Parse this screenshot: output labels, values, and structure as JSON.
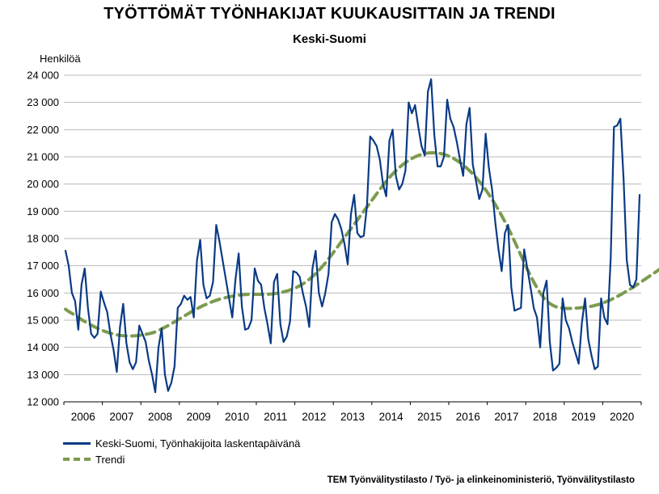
{
  "chart_data": {
    "type": "line",
    "title": "TYÖTTÖMÄT TYÖNHAKIJAT KUUKAUSITTAIN JA TRENDI",
    "subtitle": "Keski-Suomi",
    "ylabel": "Henkilöä",
    "ylim": [
      12000,
      24000
    ],
    "y_ticks": [
      12000,
      13000,
      14000,
      15000,
      16000,
      17000,
      18000,
      19000,
      20000,
      21000,
      22000,
      23000,
      24000
    ],
    "y_tick_labels": [
      "12 000",
      "13 000",
      "14 000",
      "15 000",
      "16 000",
      "17 000",
      "18 000",
      "19 000",
      "20 000",
      "21 000",
      "22 000",
      "23 000",
      "24 000"
    ],
    "x_categories": [
      "2006",
      "2007",
      "2008",
      "2009",
      "2010",
      "2011",
      "2012",
      "2013",
      "2014",
      "2015",
      "2016",
      "2017",
      "2018",
      "2019",
      "2020"
    ],
    "grid": true,
    "legend_position": "bottom-left",
    "series": [
      {
        "name": "Keski-Suomi, Työnhakijoita laskentapäivänä",
        "color": "#0a3a86",
        "style": "solid",
        "start": "2006-01",
        "values": [
          17550,
          17000,
          16000,
          15700,
          14650,
          16300,
          16900,
          15450,
          14500,
          14350,
          14500,
          16050,
          15650,
          15300,
          14500,
          13900,
          13100,
          14750,
          15600,
          14150,
          13450,
          13200,
          13450,
          14800,
          14500,
          14200,
          13500,
          13000,
          12350,
          14000,
          14700,
          13000,
          12400,
          12700,
          13300,
          15450,
          15600,
          15900,
          15750,
          15850,
          15100,
          17200,
          17950,
          16300,
          15800,
          15900,
          16400,
          18500,
          17900,
          17200,
          16500,
          15800,
          15100,
          16500,
          17450,
          15500,
          14650,
          14700,
          15000,
          16900,
          16450,
          16300,
          15450,
          14850,
          14150,
          16400,
          16700,
          14850,
          14200,
          14400,
          14950,
          16800,
          16750,
          16600,
          16000,
          15500,
          14750,
          16900,
          17550,
          16000,
          15500,
          16000,
          16700,
          18600,
          18900,
          18700,
          18350,
          17800,
          17050,
          18900,
          19600,
          18200,
          18050,
          18100,
          19200,
          21750,
          21600,
          21400,
          20900,
          20000,
          19550,
          21600,
          22000,
          20300,
          19800,
          20000,
          20500,
          23000,
          22600,
          22900,
          22100,
          21400,
          21050,
          23400,
          23850,
          21800,
          20650,
          20650,
          21000,
          23100,
          22400,
          22100,
          21550,
          20900,
          20300,
          22200,
          22800,
          20700,
          20100,
          19450,
          19800,
          21850,
          20600,
          19800,
          18600,
          17600,
          16800,
          18200,
          18500,
          16200,
          15350,
          15400,
          15450,
          17600,
          16900,
          16200,
          15450,
          15100,
          14000,
          16000,
          16450,
          14200,
          13150,
          13250,
          13400,
          15800,
          15000,
          14700,
          14200,
          13800,
          13400,
          14900,
          15800,
          14300,
          13700,
          13200,
          13300,
          15800,
          15100,
          14850,
          17300,
          22100,
          22150,
          22400,
          20200,
          17200,
          16300,
          16200,
          16500,
          19600
        ]
      },
      {
        "name": "Trendi",
        "color": "#7d9b4e",
        "style": "dashed",
        "start": "2006-01",
        "values": [
          15400,
          15320,
          15250,
          15180,
          15100,
          15020,
          14950,
          14880,
          14820,
          14760,
          14700,
          14650,
          14600,
          14560,
          14520,
          14490,
          14460,
          14440,
          14430,
          14420,
          14420,
          14420,
          14430,
          14440,
          14460,
          14480,
          14500,
          14530,
          14570,
          14620,
          14680,
          14740,
          14800,
          14870,
          14940,
          15010,
          15080,
          15150,
          15220,
          15290,
          15360,
          15420,
          15480,
          15540,
          15590,
          15640,
          15690,
          15730,
          15770,
          15800,
          15830,
          15860,
          15880,
          15900,
          15920,
          15930,
          15940,
          15950,
          15950,
          15950,
          15950,
          15950,
          15950,
          15950,
          15960,
          15970,
          15990,
          16010,
          16040,
          16070,
          16110,
          16150,
          16200,
          16260,
          16330,
          16410,
          16500,
          16600,
          16710,
          16830,
          16960,
          17100,
          17250,
          17400,
          17560,
          17720,
          17880,
          18040,
          18200,
          18360,
          18520,
          18680,
          18840,
          19000,
          19160,
          19320,
          19480,
          19640,
          19800,
          19950,
          20100,
          20240,
          20370,
          20490,
          20600,
          20700,
          20790,
          20870,
          20940,
          21000,
          21050,
          21090,
          21120,
          21140,
          21150,
          21150,
          21140,
          21120,
          21090,
          21050,
          21000,
          20940,
          20870,
          20790,
          20700,
          20600,
          20490,
          20370,
          20240,
          20100,
          19950,
          19790,
          19620,
          19440,
          19250,
          19050,
          18840,
          18620,
          18390,
          18150,
          17900,
          17640,
          17380,
          17120,
          16870,
          16630,
          16400,
          16190,
          16000,
          15840,
          15710,
          15610,
          15540,
          15490,
          15460,
          15440,
          15430,
          15430,
          15430,
          15440,
          15450,
          15460,
          15470,
          15490,
          15510,
          15540,
          15570,
          15610,
          15650,
          15700,
          15750,
          15810,
          15870,
          15930,
          16000,
          16070,
          16140,
          16210,
          16290,
          16370,
          16450,
          16530,
          16610,
          16690,
          16770,
          16850,
          16930,
          17010,
          17100,
          17180
        ]
      }
    ]
  },
  "source": "TEM Työnvälitystilasto / Työ- ja elinkeinoministeriö, Työnvälitystilasto"
}
